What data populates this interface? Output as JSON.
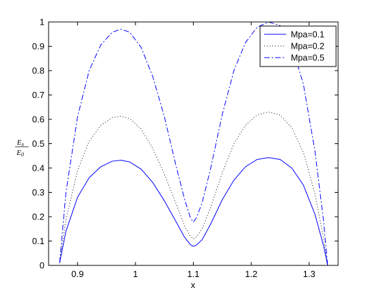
{
  "chart_data": {
    "type": "line",
    "xlabel": "x",
    "ylabel": {
      "numerator": "E",
      "numerator_sub": "x",
      "denominator": "E",
      "denominator_sub": "0"
    },
    "xlim": [
      0.85,
      1.35
    ],
    "ylim": [
      0,
      1
    ],
    "xticks": [
      "0.9",
      "1",
      "1.1",
      "1.2",
      "1.3"
    ],
    "yticks": [
      "0",
      "0.1",
      "0.2",
      "0.3",
      "0.4",
      "0.5",
      "0.6",
      "0.7",
      "0.8",
      "0.9",
      "1"
    ],
    "grid": false,
    "legend_position": "top-right",
    "series": [
      {
        "name": "Mpa=0.1",
        "style": "solid",
        "color": "#0000ff",
        "points": [
          [
            0.869,
            0.01
          ],
          [
            0.88,
            0.14
          ],
          [
            0.9,
            0.28
          ],
          [
            0.92,
            0.36
          ],
          [
            0.94,
            0.405
          ],
          [
            0.96,
            0.428
          ],
          [
            0.975,
            0.432
          ],
          [
            0.99,
            0.425
          ],
          [
            1.01,
            0.395
          ],
          [
            1.03,
            0.34
          ],
          [
            1.05,
            0.265
          ],
          [
            1.07,
            0.18
          ],
          [
            1.085,
            0.115
          ],
          [
            1.095,
            0.085
          ],
          [
            1.1,
            0.078
          ],
          [
            1.105,
            0.083
          ],
          [
            1.115,
            0.105
          ],
          [
            1.13,
            0.17
          ],
          [
            1.15,
            0.27
          ],
          [
            1.17,
            0.35
          ],
          [
            1.19,
            0.405
          ],
          [
            1.21,
            0.435
          ],
          [
            1.23,
            0.443
          ],
          [
            1.25,
            0.435
          ],
          [
            1.27,
            0.4
          ],
          [
            1.29,
            0.33
          ],
          [
            1.31,
            0.21
          ],
          [
            1.325,
            0.08
          ],
          [
            1.332,
            0.0
          ]
        ]
      },
      {
        "name": "Mpa=0.2",
        "style": "dotted",
        "color": "#000000",
        "points": [
          [
            0.869,
            0.01
          ],
          [
            0.88,
            0.19
          ],
          [
            0.9,
            0.39
          ],
          [
            0.92,
            0.51
          ],
          [
            0.94,
            0.575
          ],
          [
            0.96,
            0.607
          ],
          [
            0.975,
            0.613
          ],
          [
            0.99,
            0.603
          ],
          [
            1.01,
            0.56
          ],
          [
            1.03,
            0.48
          ],
          [
            1.05,
            0.375
          ],
          [
            1.07,
            0.255
          ],
          [
            1.085,
            0.16
          ],
          [
            1.095,
            0.12
          ],
          [
            1.1,
            0.108
          ],
          [
            1.105,
            0.117
          ],
          [
            1.115,
            0.15
          ],
          [
            1.13,
            0.24
          ],
          [
            1.15,
            0.38
          ],
          [
            1.17,
            0.5
          ],
          [
            1.19,
            0.575
          ],
          [
            1.21,
            0.618
          ],
          [
            1.23,
            0.63
          ],
          [
            1.25,
            0.618
          ],
          [
            1.27,
            0.565
          ],
          [
            1.29,
            0.465
          ],
          [
            1.31,
            0.295
          ],
          [
            1.325,
            0.11
          ],
          [
            1.332,
            0.0
          ]
        ]
      },
      {
        "name": "Mpa=0.5",
        "style": "dashdot",
        "color": "#0000ff",
        "points": [
          [
            0.869,
            0.01
          ],
          [
            0.88,
            0.3
          ],
          [
            0.9,
            0.61
          ],
          [
            0.92,
            0.8
          ],
          [
            0.94,
            0.905
          ],
          [
            0.96,
            0.958
          ],
          [
            0.975,
            0.97
          ],
          [
            0.99,
            0.958
          ],
          [
            1.01,
            0.895
          ],
          [
            1.03,
            0.775
          ],
          [
            1.05,
            0.61
          ],
          [
            1.07,
            0.41
          ],
          [
            1.085,
            0.27
          ],
          [
            1.095,
            0.195
          ],
          [
            1.1,
            0.178
          ],
          [
            1.105,
            0.195
          ],
          [
            1.115,
            0.255
          ],
          [
            1.13,
            0.4
          ],
          [
            1.15,
            0.62
          ],
          [
            1.17,
            0.8
          ],
          [
            1.19,
            0.915
          ],
          [
            1.21,
            0.978
          ],
          [
            1.23,
            1.0
          ],
          [
            1.25,
            0.985
          ],
          [
            1.27,
            0.9
          ],
          [
            1.29,
            0.745
          ],
          [
            1.31,
            0.47
          ],
          [
            1.325,
            0.18
          ],
          [
            1.332,
            0.0
          ]
        ]
      }
    ]
  }
}
